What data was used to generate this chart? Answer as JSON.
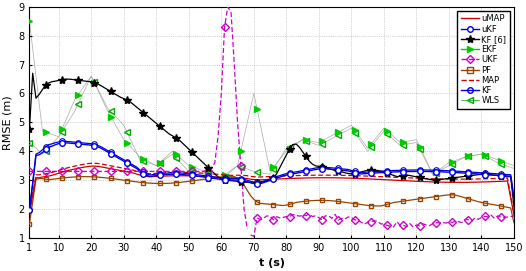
{
  "title": "",
  "xlabel": "t (s)",
  "ylabel": "RMSE (m)",
  "xlim": [
    1,
    150
  ],
  "ylim": [
    1,
    9
  ],
  "yticks": [
    1,
    2,
    3,
    4,
    5,
    6,
    7,
    8,
    9
  ],
  "xticks": [
    1,
    10,
    20,
    30,
    40,
    50,
    60,
    70,
    80,
    90,
    100,
    110,
    120,
    130,
    140,
    150
  ],
  "bg_color": "#ffffff",
  "grid_color": "#bbbbbb"
}
